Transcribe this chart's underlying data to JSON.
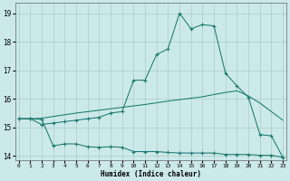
{
  "xlabel": "Humidex (Indice chaleur)",
  "xlim": [
    -0.3,
    23.3
  ],
  "ylim": [
    13.85,
    19.35
  ],
  "yticks": [
    14,
    15,
    16,
    17,
    18,
    19
  ],
  "xticks": [
    0,
    1,
    2,
    3,
    4,
    5,
    6,
    7,
    8,
    9,
    10,
    11,
    12,
    13,
    14,
    15,
    16,
    17,
    18,
    19,
    20,
    21,
    22,
    23
  ],
  "bg": "#cce9e9",
  "grid_color": "#aacccc",
  "line_color": "#1a7a6e",
  "line1_x": [
    0,
    1,
    2,
    3,
    4,
    5,
    6,
    7,
    8,
    9,
    10,
    11,
    12,
    13,
    14,
    15,
    16,
    17,
    18,
    19,
    20,
    21,
    22,
    23
  ],
  "line1_y": [
    15.3,
    15.3,
    15.1,
    15.15,
    15.2,
    15.25,
    15.3,
    15.35,
    15.5,
    15.55,
    16.65,
    16.65,
    17.55,
    17.75,
    19.0,
    18.45,
    18.6,
    18.55,
    16.9,
    16.45,
    16.05,
    14.75,
    14.7,
    13.95
  ],
  "line2_x": [
    0,
    1,
    2,
    3,
    4,
    5,
    6,
    7,
    8,
    9,
    10,
    11,
    12,
    13,
    14,
    15,
    16,
    17,
    18,
    19,
    20,
    21,
    22,
    23
  ],
  "line2_y": [
    15.3,
    15.3,
    15.32,
    15.38,
    15.44,
    15.5,
    15.55,
    15.6,
    15.65,
    15.7,
    15.75,
    15.8,
    15.86,
    15.92,
    15.97,
    16.02,
    16.07,
    16.15,
    16.22,
    16.28,
    16.1,
    15.85,
    15.55,
    15.25
  ],
  "line3_x": [
    0,
    1,
    2,
    3,
    4,
    5,
    6,
    7,
    8,
    9,
    10,
    11,
    12,
    13,
    14,
    15,
    16,
    17,
    18,
    19,
    20,
    21,
    22,
    23
  ],
  "line3_y": [
    15.3,
    15.3,
    15.28,
    14.35,
    14.42,
    14.42,
    14.32,
    14.3,
    14.32,
    14.3,
    14.15,
    14.15,
    14.15,
    14.12,
    14.1,
    14.1,
    14.1,
    14.1,
    14.05,
    14.05,
    14.05,
    14.02,
    14.02,
    13.95
  ]
}
